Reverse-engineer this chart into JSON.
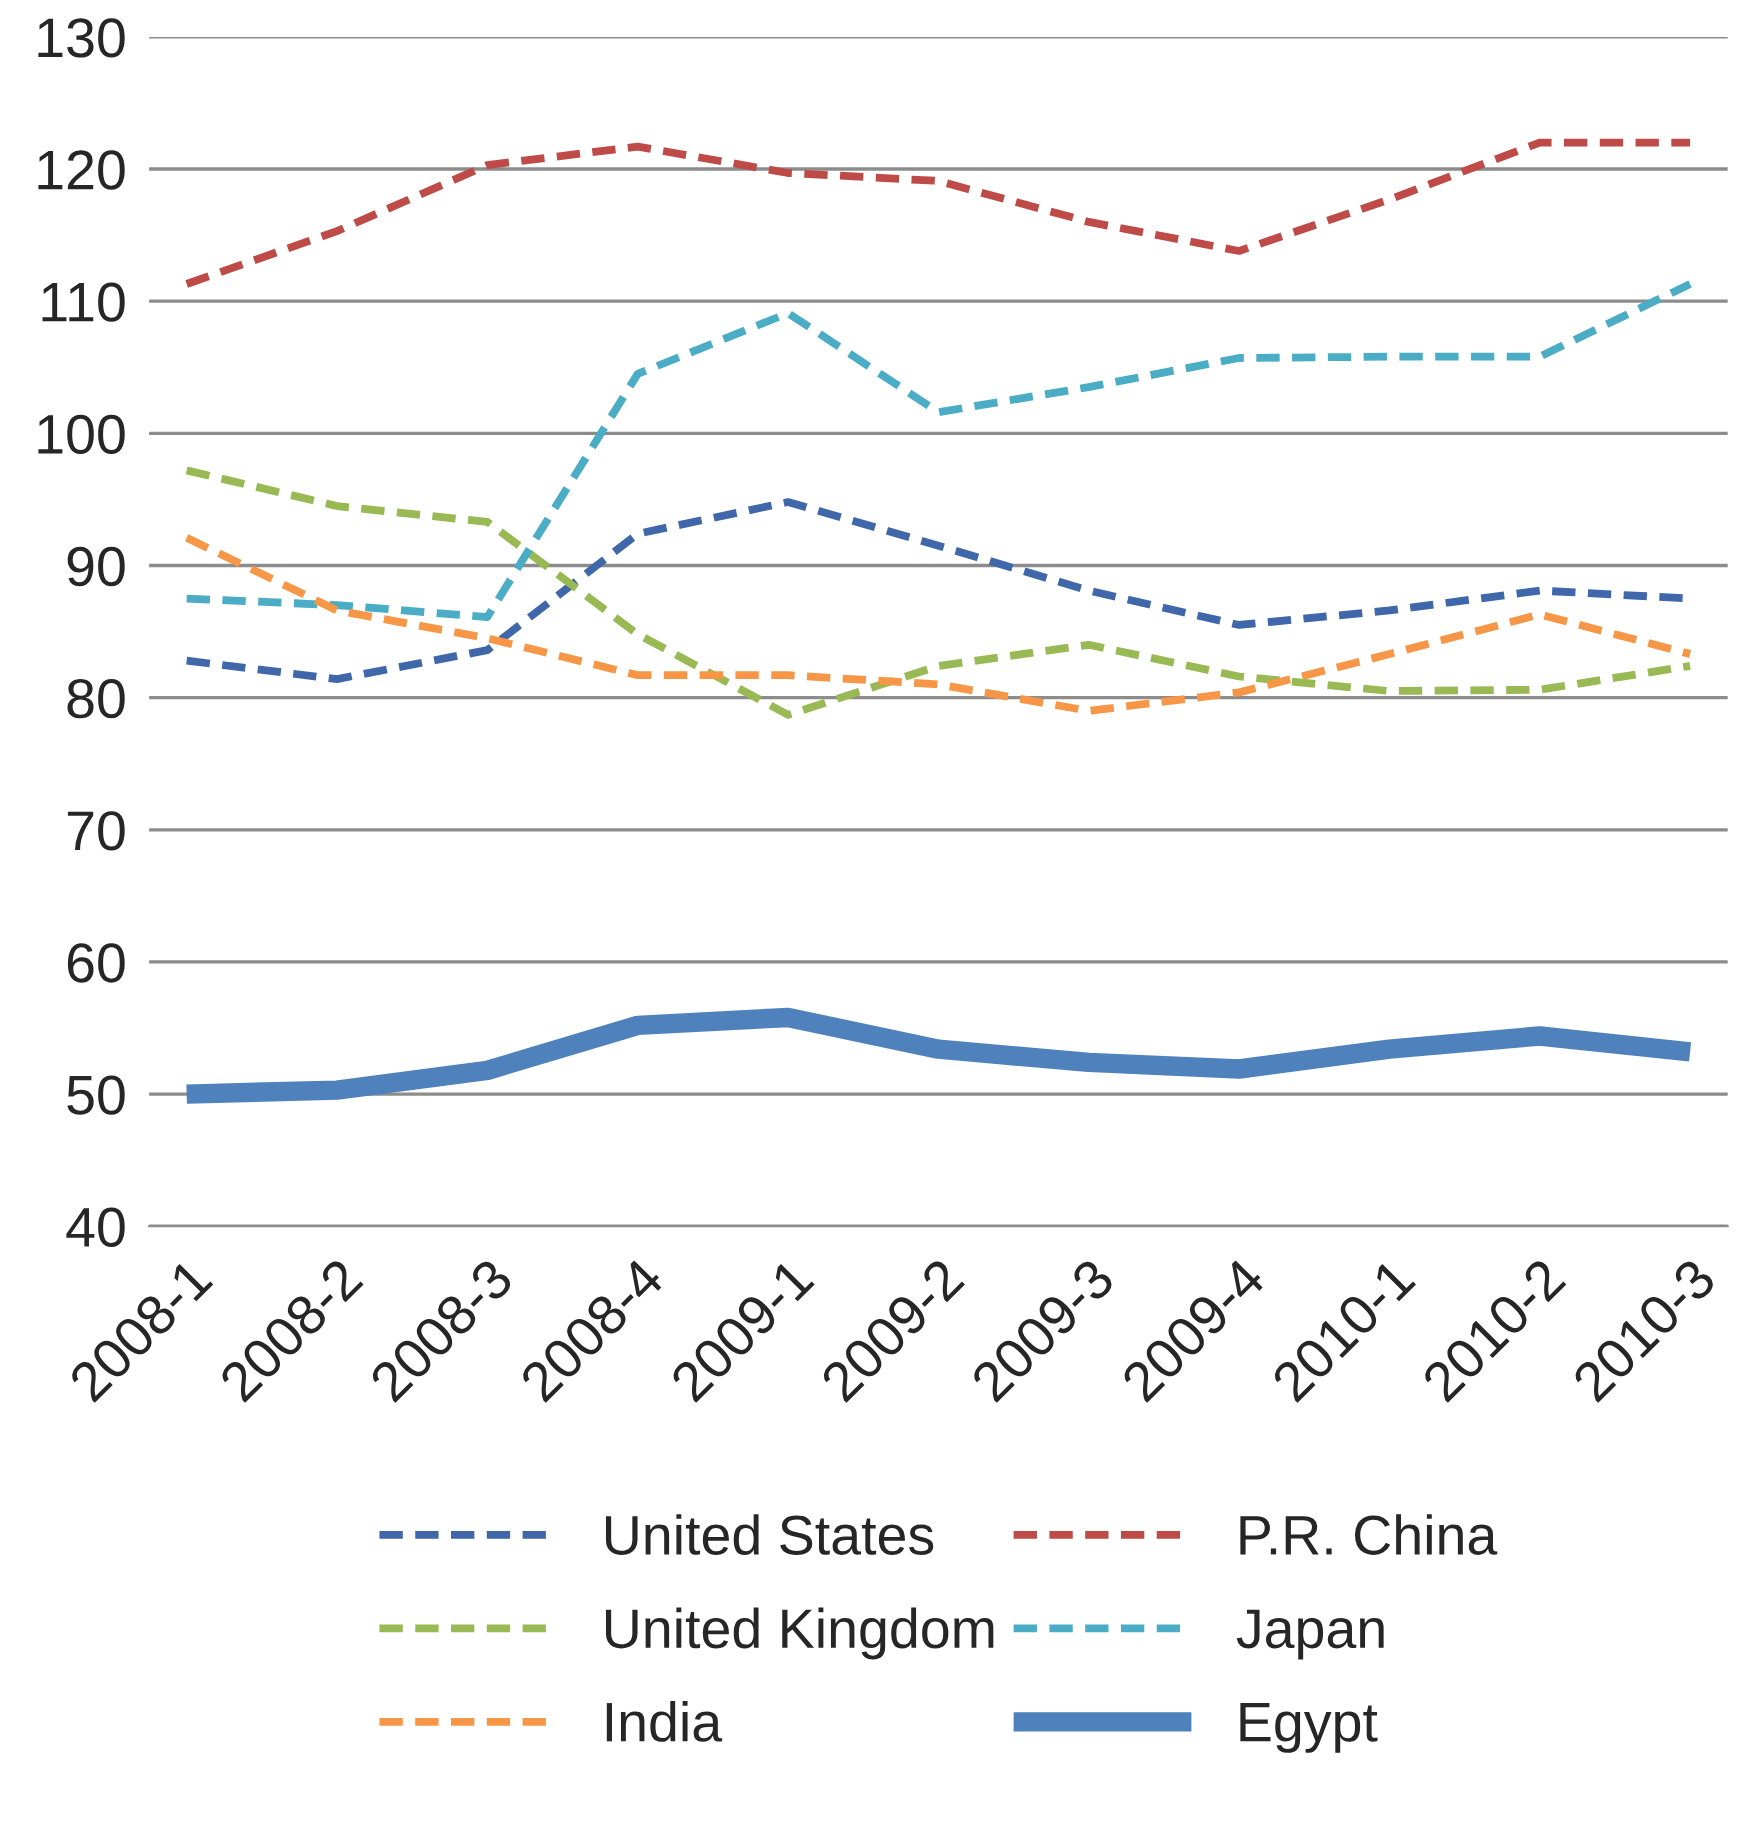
{
  "chart_data": {
    "type": "line",
    "categories": [
      "2008-1",
      "2008-2",
      "2008-3",
      "2008-4",
      "2009-1",
      "2009-2",
      "2009-3",
      "2009-4",
      "2010-1",
      "2010-2",
      "2010-3"
    ],
    "series": [
      {
        "name": "United States",
        "color": "#3f67aa",
        "line_style": "dashed",
        "values": [
          82.8,
          81.4,
          83.6,
          92.4,
          94.8,
          91.5,
          88.1,
          85.5,
          86.6,
          88.1,
          87.5
        ]
      },
      {
        "name": "P.R. China",
        "color": "#be4b48",
        "line_style": "dashed",
        "values": [
          111.3,
          115.3,
          120.3,
          121.7,
          119.7,
          119.1,
          116,
          113.8,
          117.7,
          122,
          122
        ]
      },
      {
        "name": "United Kingdom",
        "color": "#98b954",
        "line_style": "dashed",
        "values": [
          97.2,
          94.5,
          93.3,
          84.8,
          78.7,
          82.4,
          84,
          81.6,
          80.5,
          80.6,
          82.4
        ]
      },
      {
        "name": "Japan",
        "color": "#4bacc6",
        "line_style": "dashed",
        "values": [
          87.5,
          87,
          86.1,
          104.5,
          109.1,
          101.6,
          103.5,
          105.7,
          105.8,
          105.8,
          111.3
        ]
      },
      {
        "name": "India",
        "color": "#f79646",
        "line_style": "dashed",
        "values": [
          92.1,
          86.6,
          84.5,
          81.7,
          81.7,
          81,
          79,
          80.4,
          83.3,
          86.3,
          83.3
        ]
      },
      {
        "name": "Egypt",
        "color": "#4f81bd",
        "line_style": "solid",
        "values": [
          50,
          50.3,
          51.8,
          55.2,
          55.8,
          53.4,
          52.4,
          51.9,
          53.4,
          54.4,
          53.2
        ]
      }
    ],
    "ylim": [
      40,
      130
    ],
    "yticks": [
      40,
      50,
      60,
      70,
      80,
      90,
      100,
      110,
      120,
      130
    ],
    "grid": "y",
    "legend": "bottom",
    "marker": "none"
  }
}
